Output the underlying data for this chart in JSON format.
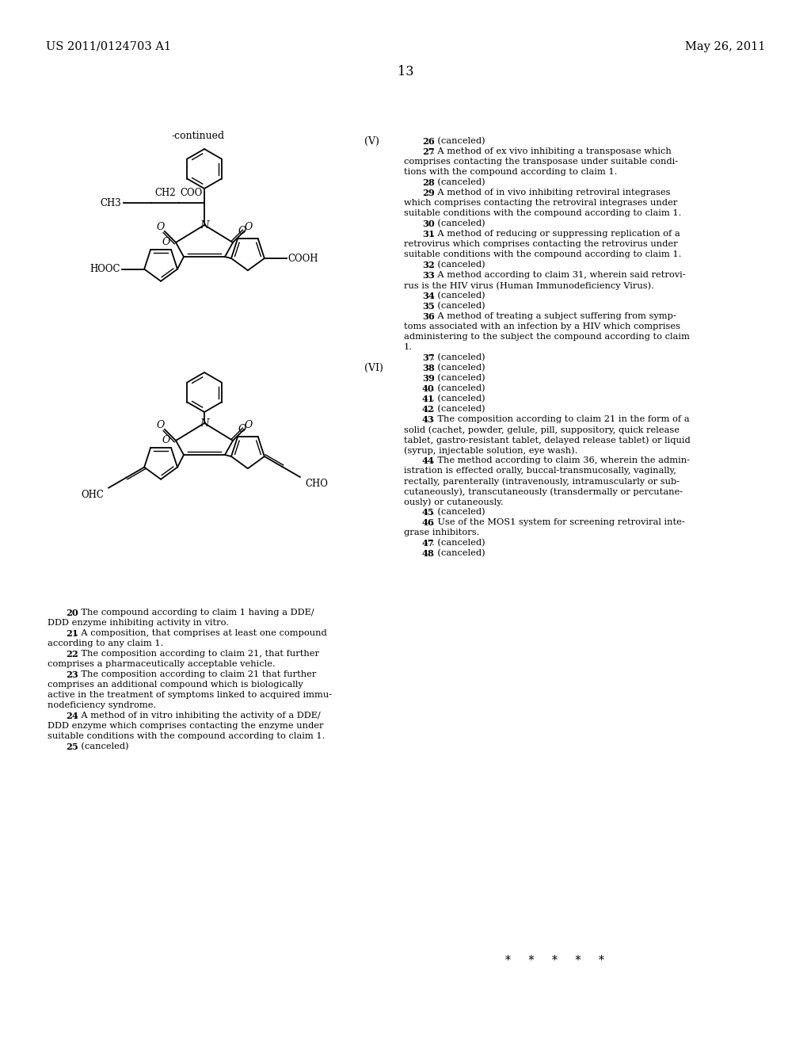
{
  "background_color": "#ffffff",
  "header_left": "US 2011/0124703 A1",
  "header_right": "May 26, 2011",
  "page_number": "13",
  "continued_label": "-continued",
  "label_V": "(V)",
  "label_VI": "(VI)",
  "asterisks": "*  *  *  *  *"
}
